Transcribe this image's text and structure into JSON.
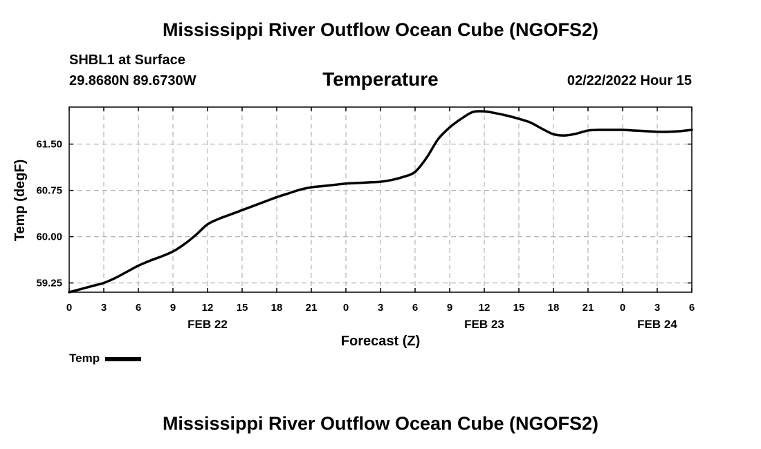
{
  "page": {
    "title": "Mississippi River Outflow Ocean Cube (NGOFS2)",
    "station": "SHBL1 at Surface",
    "coordinates": "29.8680N  89.6730W",
    "datetime": "02/22/2022 Hour 15",
    "footer_title": "Mississippi River Outflow Ocean Cube (NGOFS2)"
  },
  "chart_data": {
    "type": "line",
    "title": "Temperature",
    "xlabel": "Forecast (Z)",
    "ylabel": "Temp (degF)",
    "xlim": [
      0,
      54
    ],
    "ylim": [
      59.1,
      62.1
    ],
    "grid": true,
    "x_ticks": [
      0,
      3,
      6,
      9,
      12,
      15,
      18,
      21,
      24,
      27,
      30,
      33,
      36,
      39,
      42,
      45,
      48,
      51,
      54
    ],
    "x_tick_labels": [
      "0",
      "3",
      "6",
      "9",
      "12",
      "15",
      "18",
      "21",
      "0",
      "3",
      "6",
      "9",
      "12",
      "15",
      "18",
      "21",
      "0",
      "3",
      "6"
    ],
    "date_labels": [
      {
        "x": 12,
        "label": "FEB 22"
      },
      {
        "x": 36,
        "label": "FEB 23"
      },
      {
        "x": 51,
        "label": "FEB 24"
      }
    ],
    "y_ticks": [
      59.25,
      60.0,
      60.75,
      61.5
    ],
    "y_tick_labels": [
      "59.25",
      "60.00",
      "60.75",
      "61.50"
    ],
    "legend": [
      {
        "name": "Temp",
        "color": "#000000"
      }
    ],
    "series": [
      {
        "name": "Temp",
        "color": "#000000",
        "x": [
          0,
          1,
          2,
          3,
          4,
          5,
          6,
          7,
          8,
          9,
          10,
          11,
          12,
          13,
          14,
          15,
          16,
          17,
          18,
          19,
          20,
          21,
          22,
          23,
          24,
          25,
          26,
          27,
          28,
          29,
          30,
          31,
          32,
          33,
          34,
          35,
          36,
          37,
          38,
          39,
          40,
          41,
          42,
          43,
          44,
          45,
          46,
          47,
          48,
          49,
          50,
          51,
          52,
          53,
          54
        ],
        "y": [
          59.1,
          59.15,
          59.2,
          59.25,
          59.33,
          59.43,
          59.53,
          59.61,
          59.68,
          59.76,
          59.88,
          60.03,
          60.2,
          60.29,
          60.36,
          60.43,
          60.5,
          60.57,
          60.64,
          60.7,
          60.76,
          60.8,
          60.82,
          60.84,
          60.86,
          60.87,
          60.88,
          60.89,
          60.92,
          60.97,
          61.05,
          61.28,
          61.58,
          61.77,
          61.91,
          62.02,
          62.03,
          62.0,
          61.96,
          61.91,
          61.85,
          61.75,
          61.66,
          61.64,
          61.67,
          61.72,
          61.73,
          61.73,
          61.73,
          61.72,
          61.71,
          61.7,
          61.7,
          61.71,
          61.73
        ]
      }
    ]
  }
}
